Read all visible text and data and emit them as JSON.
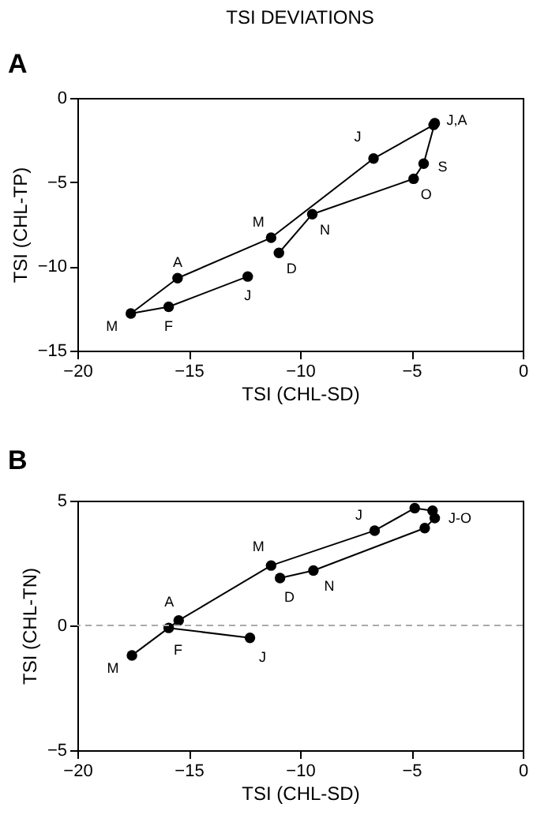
{
  "chart_data": [
    {
      "type": "line",
      "title": "TSI DEVIATIONS",
      "xlabel": "TSI (CHL-SD)",
      "ylabel": "TSI (CHL-TP)",
      "x": [
        -12.35,
        -15.9,
        -17.6,
        -15.5,
        -11.3,
        -6.7,
        -4.0,
        -3.95,
        -4.45,
        -4.9,
        -9.45,
        -10.95
      ],
      "series": [
        {
          "color": "#000000",
          "values": [
            -10.6,
            -12.4,
            -12.8,
            -10.7,
            -8.3,
            -3.6,
            -1.6,
            -1.5,
            -3.9,
            -4.8,
            -6.9,
            -9.2
          ]
        }
      ],
      "marker": "circle",
      "xlim": [
        -20,
        0
      ],
      "ylim": [
        -15,
        0
      ],
      "xticks": [
        -20,
        -15,
        -10,
        -5,
        0
      ],
      "yticks": [
        -15,
        -10,
        -5,
        0
      ],
      "annotations": [
        "A",
        {
          "text": "J",
          "x": -12.35,
          "y": -10.6
        },
        {
          "text": "F",
          "x": -15.9,
          "y": -12.4
        },
        {
          "text": "M",
          "x": -17.6,
          "y": -12.8
        },
        {
          "text": "A",
          "x": -15.5,
          "y": -10.7
        },
        {
          "text": "M",
          "x": -11.3,
          "y": -8.3
        },
        {
          "text": "J",
          "x": -6.7,
          "y": -3.6
        },
        {
          "text": "J,A",
          "x": -3.95,
          "y": -1.5
        },
        {
          "text": "S",
          "x": -4.45,
          "y": -3.9
        },
        {
          "text": "O",
          "x": -4.9,
          "y": -4.8
        },
        {
          "text": "N",
          "x": -9.45,
          "y": -6.9
        },
        {
          "text": "D",
          "x": -10.95,
          "y": -9.2
        }
      ]
    },
    {
      "type": "line",
      "xlabel": "TSI (CHL-SD)",
      "ylabel": "TSI (CHL-TN)",
      "x": [
        -12.25,
        -15.9,
        -17.55,
        -15.45,
        -11.3,
        -6.65,
        -4.85,
        -4.05,
        -3.95,
        -4.4,
        -9.4,
        -10.9
      ],
      "series": [
        {
          "color": "#000000",
          "values": [
            -0.5,
            -0.1,
            -1.2,
            0.2,
            2.4,
            3.8,
            4.7,
            4.6,
            4.3,
            3.9,
            2.2,
            1.9
          ]
        }
      ],
      "marker": "circle",
      "xlim": [
        -20,
        0
      ],
      "ylim": [
        -5,
        5
      ],
      "xticks": [
        -20,
        -15,
        -10,
        -5,
        0
      ],
      "yticks": [
        -5,
        0,
        5
      ],
      "ref_lines": [
        {
          "axis": "y",
          "value": 0,
          "color": "#aaaaaa",
          "line_style": "dashed"
        }
      ],
      "annotations": [
        "B",
        {
          "text": "A",
          "x": -15.45,
          "y": 0.2
        },
        {
          "text": "F",
          "x": -15.9,
          "y": -0.1
        },
        {
          "text": "M",
          "x": -17.55,
          "y": -1.2
        },
        {
          "text": "M",
          "x": -11.3,
          "y": 2.4
        },
        {
          "text": "J",
          "x": -12.25,
          "y": -0.5
        },
        {
          "text": "D",
          "x": -10.9,
          "y": 1.9
        },
        {
          "text": "N",
          "x": -9.4,
          "y": 2.2
        },
        {
          "text": "J",
          "x": -6.65,
          "y": 3.8
        },
        {
          "text": "J-O",
          "x": -3.95,
          "y": 4.3
        }
      ]
    }
  ]
}
